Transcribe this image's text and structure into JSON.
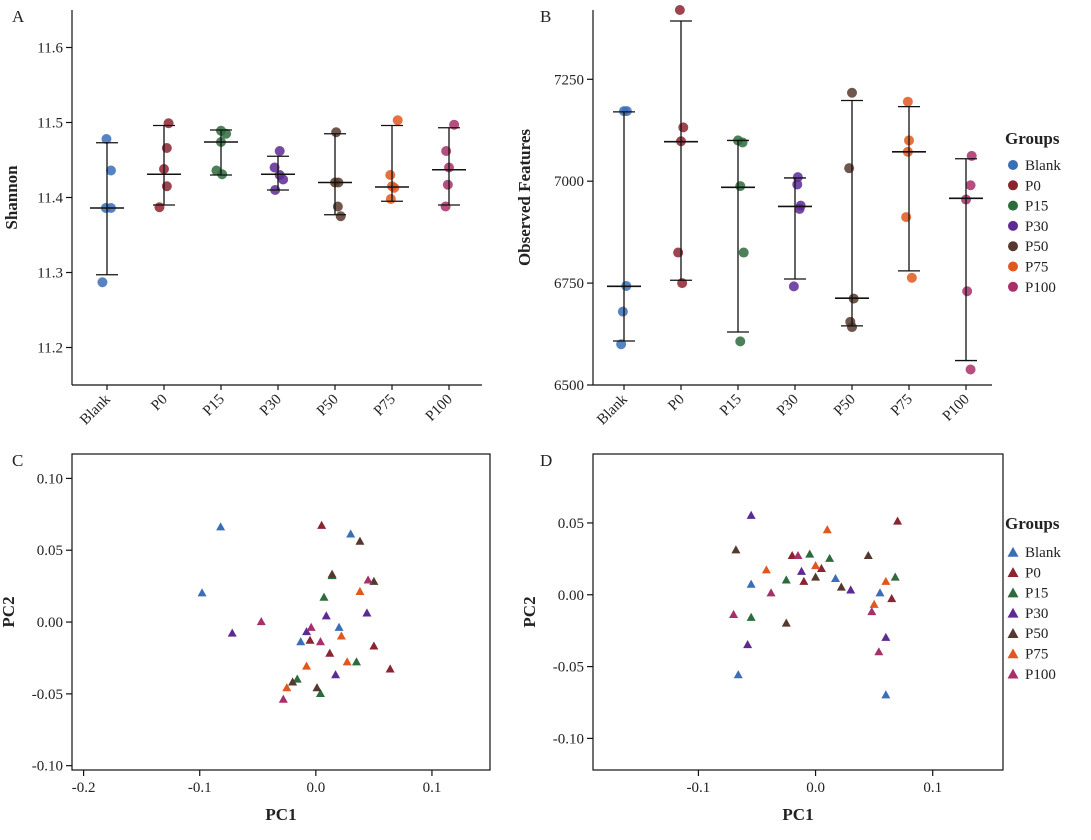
{
  "groups": [
    {
      "name": "Blank",
      "color": "#3a6fb5"
    },
    {
      "name": "P0",
      "color": "#8b2430"
    },
    {
      "name": "P15",
      "color": "#2d6b3c"
    },
    {
      "name": "P30",
      "color": "#5d2a94"
    },
    {
      "name": "P50",
      "color": "#56392e"
    },
    {
      "name": "P75",
      "color": "#e0581f"
    },
    {
      "name": "P100",
      "color": "#a8306a"
    }
  ],
  "legend_title_top": "Groups",
  "legend_title_bottom": "Groups",
  "chart_data": [
    {
      "panel": "A",
      "type": "scatter",
      "ylabel": "Shannon",
      "xlabel": "",
      "ylim": [
        11.15,
        11.65
      ],
      "yticks": [
        11.2,
        11.3,
        11.4,
        11.5,
        11.6
      ],
      "categories": [
        "Blank",
        "P0",
        "P15",
        "P30",
        "P50",
        "P75",
        "P100"
      ],
      "points": [
        [
          {
            "o": -0.08,
            "y": 11.287
          },
          {
            "o": -0.02,
            "y": 11.386
          },
          {
            "o": 0.07,
            "y": 11.386
          },
          {
            "o": -0.01,
            "y": 11.478
          },
          {
            "o": 0.07,
            "y": 11.436
          }
        ],
        [
          {
            "o": -0.08,
            "y": 11.387
          },
          {
            "o": 0.05,
            "y": 11.415
          },
          {
            "o": 0.0,
            "y": 11.438
          },
          {
            "o": 0.05,
            "y": 11.466
          },
          {
            "o": 0.08,
            "y": 11.499
          }
        ],
        [
          {
            "o": -0.08,
            "y": 11.436
          },
          {
            "o": 0.0,
            "y": 11.474
          },
          {
            "o": 0.0,
            "y": 11.489
          },
          {
            "o": 0.09,
            "y": 11.485
          },
          {
            "o": 0.02,
            "y": 11.431
          }
        ],
        [
          {
            "o": -0.06,
            "y": 11.44
          },
          {
            "o": 0.03,
            "y": 11.462
          },
          {
            "o": 0.03,
            "y": 11.43
          },
          {
            "o": -0.05,
            "y": 11.41
          },
          {
            "o": 0.09,
            "y": 11.424
          }
        ],
        [
          {
            "o": 0.02,
            "y": 11.487
          },
          {
            "o": 0.0,
            "y": 11.42
          },
          {
            "o": 0.06,
            "y": 11.42
          },
          {
            "o": 0.05,
            "y": 11.388
          },
          {
            "o": 0.1,
            "y": 11.375
          }
        ],
        [
          {
            "o": -0.03,
            "y": 11.43
          },
          {
            "o": 0.1,
            "y": 11.503
          },
          {
            "o": 0.0,
            "y": 11.415
          },
          {
            "o": -0.02,
            "y": 11.398
          },
          {
            "o": 0.04,
            "y": 11.413
          }
        ],
        [
          {
            "o": -0.05,
            "y": 11.462
          },
          {
            "o": 0.09,
            "y": 11.497
          },
          {
            "o": -0.06,
            "y": 11.388
          },
          {
            "o": 0.0,
            "y": 11.44
          },
          {
            "o": -0.02,
            "y": 11.417
          }
        ]
      ],
      "mean": [
        11.386,
        11.431,
        11.474,
        11.431,
        11.42,
        11.414,
        11.437
      ],
      "err_low": [
        11.297,
        11.39,
        11.43,
        11.41,
        11.377,
        11.395,
        11.39
      ],
      "err_high": [
        11.473,
        11.496,
        11.49,
        11.455,
        11.485,
        11.496,
        11.493
      ]
    },
    {
      "panel": "B",
      "type": "scatter",
      "ylabel": "Observed Features",
      "xlabel": "",
      "ylim": [
        6500,
        7420
      ],
      "yticks": [
        6500,
        6750,
        7000,
        7250
      ],
      "categories": [
        "Blank",
        "P0",
        "P15",
        "P30",
        "P50",
        "P75",
        "P100"
      ],
      "points": [
        [
          {
            "o": -0.05,
            "y": 6600
          },
          {
            "o": -0.02,
            "y": 6680
          },
          {
            "o": 0.04,
            "y": 6743
          },
          {
            "o": 0.0,
            "y": 7172
          },
          {
            "o": 0.05,
            "y": 7172
          }
        ],
        [
          {
            "o": -0.05,
            "y": 6825
          },
          {
            "o": 0.02,
            "y": 6750
          },
          {
            "o": 0.0,
            "y": 7098
          },
          {
            "o": 0.04,
            "y": 7132
          },
          {
            "o": -0.02,
            "y": 7420
          }
        ],
        [
          {
            "o": 0.0,
            "y": 7100
          },
          {
            "o": 0.08,
            "y": 7095
          },
          {
            "o": 0.04,
            "y": 6988
          },
          {
            "o": 0.1,
            "y": 6825
          },
          {
            "o": 0.04,
            "y": 6607
          }
        ],
        [
          {
            "o": 0.05,
            "y": 7010
          },
          {
            "o": 0.04,
            "y": 6992
          },
          {
            "o": 0.08,
            "y": 6932
          },
          {
            "o": 0.1,
            "y": 6940
          },
          {
            "o": -0.02,
            "y": 6742
          }
        ],
        [
          {
            "o": -0.05,
            "y": 7032
          },
          {
            "o": 0.0,
            "y": 7217
          },
          {
            "o": 0.03,
            "y": 6712
          },
          {
            "o": -0.03,
            "y": 6655
          },
          {
            "o": 0.0,
            "y": 6642
          }
        ],
        [
          {
            "o": -0.05,
            "y": 6912
          },
          {
            "o": -0.02,
            "y": 7195
          },
          {
            "o": 0.0,
            "y": 7100
          },
          {
            "o": -0.02,
            "y": 7072
          },
          {
            "o": 0.05,
            "y": 6763
          }
        ],
        [
          {
            "o": 0.1,
            "y": 7062
          },
          {
            "o": 0.08,
            "y": 6990
          },
          {
            "o": 0.0,
            "y": 6955
          },
          {
            "o": 0.02,
            "y": 6730
          },
          {
            "o": 0.08,
            "y": 6538
          }
        ]
      ],
      "mean": [
        6742,
        7097,
        6985,
        6938,
        6713,
        7072,
        6958
      ],
      "err_low": [
        6608,
        6757,
        6630,
        6760,
        6645,
        6780,
        6560
      ],
      "err_high": [
        7170,
        7393,
        7100,
        7008,
        7198,
        7183,
        7055
      ]
    },
    {
      "panel": "C",
      "type": "scatter",
      "xlabel": "PC1",
      "ylabel": "PC2",
      "xlim": [
        -0.21,
        0.15
      ],
      "ylim": [
        -0.103,
        0.117
      ],
      "xticks": [
        -0.2,
        -0.1,
        0.0,
        0.1
      ],
      "yticks": [
        -0.1,
        -0.05,
        0.0,
        0.05,
        0.1
      ],
      "xtick_labels": [
        "-0.2",
        "-0.1",
        "0.0",
        "0.1"
      ],
      "ytick_labels": [
        "-0.10",
        "-0.05",
        "0.00",
        "0.05",
        "0.10"
      ],
      "points": [
        {
          "g": 0,
          "x": -0.082,
          "y": 0.066
        },
        {
          "g": 0,
          "x": -0.098,
          "y": 0.02
        },
        {
          "g": 0,
          "x": 0.03,
          "y": 0.061
        },
        {
          "g": 0,
          "x": -0.013,
          "y": -0.014
        },
        {
          "g": 0,
          "x": 0.02,
          "y": -0.004
        },
        {
          "g": 1,
          "x": 0.005,
          "y": 0.067
        },
        {
          "g": 1,
          "x": 0.064,
          "y": -0.033
        },
        {
          "g": 1,
          "x": 0.05,
          "y": -0.017
        },
        {
          "g": 1,
          "x": -0.005,
          "y": -0.013
        },
        {
          "g": 1,
          "x": 0.012,
          "y": -0.022
        },
        {
          "g": 2,
          "x": 0.014,
          "y": 0.032
        },
        {
          "g": 2,
          "x": 0.007,
          "y": 0.017
        },
        {
          "g": 2,
          "x": 0.035,
          "y": -0.028
        },
        {
          "g": 2,
          "x": -0.016,
          "y": -0.04
        },
        {
          "g": 2,
          "x": 0.004,
          "y": -0.05
        },
        {
          "g": 3,
          "x": -0.072,
          "y": -0.008
        },
        {
          "g": 3,
          "x": 0.009,
          "y": 0.004
        },
        {
          "g": 3,
          "x": -0.008,
          "y": -0.007
        },
        {
          "g": 3,
          "x": 0.044,
          "y": 0.006
        },
        {
          "g": 3,
          "x": 0.017,
          "y": -0.037
        },
        {
          "g": 4,
          "x": 0.038,
          "y": 0.056
        },
        {
          "g": 4,
          "x": 0.05,
          "y": 0.028
        },
        {
          "g": 4,
          "x": 0.014,
          "y": 0.033
        },
        {
          "g": 4,
          "x": -0.02,
          "y": -0.042
        },
        {
          "g": 4,
          "x": 0.001,
          "y": -0.046
        },
        {
          "g": 5,
          "x": -0.025,
          "y": -0.046
        },
        {
          "g": 5,
          "x": -0.008,
          "y": -0.031
        },
        {
          "g": 5,
          "x": 0.022,
          "y": -0.01
        },
        {
          "g": 5,
          "x": 0.027,
          "y": -0.028
        },
        {
          "g": 5,
          "x": 0.038,
          "y": 0.021
        },
        {
          "g": 6,
          "x": -0.047,
          "y": 0.0
        },
        {
          "g": 6,
          "x": -0.028,
          "y": -0.054
        },
        {
          "g": 6,
          "x": 0.045,
          "y": 0.029
        },
        {
          "g": 6,
          "x": -0.004,
          "y": -0.004
        },
        {
          "g": 6,
          "x": 0.004,
          "y": -0.014
        }
      ]
    },
    {
      "panel": "D",
      "type": "scatter",
      "xlabel": "PC1",
      "ylabel": "PC2",
      "xlim": [
        -0.19,
        0.16
      ],
      "ylim": [
        -0.122,
        0.098
      ],
      "xticks": [
        -0.1,
        0.0,
        0.1
      ],
      "yticks": [
        -0.1,
        -0.05,
        0.0,
        0.05
      ],
      "xtick_labels": [
        "-0.1",
        "0.0",
        "0.1"
      ],
      "ytick_labels": [
        "-0.10",
        "-0.05",
        "0.00",
        "0.05"
      ],
      "points": [
        {
          "g": 0,
          "x": -0.055,
          "y": 0.007
        },
        {
          "g": 0,
          "x": -0.066,
          "y": -0.056
        },
        {
          "g": 0,
          "x": 0.055,
          "y": 0.001
        },
        {
          "g": 0,
          "x": 0.06,
          "y": -0.07
        },
        {
          "g": 0,
          "x": 0.017,
          "y": 0.011
        },
        {
          "g": 1,
          "x": 0.07,
          "y": 0.051
        },
        {
          "g": 1,
          "x": 0.065,
          "y": -0.003
        },
        {
          "g": 1,
          "x": -0.01,
          "y": 0.009
        },
        {
          "g": 1,
          "x": 0.005,
          "y": 0.018
        },
        {
          "g": 1,
          "x": -0.02,
          "y": 0.027
        },
        {
          "g": 2,
          "x": -0.055,
          "y": -0.016
        },
        {
          "g": 2,
          "x": -0.025,
          "y": 0.01
        },
        {
          "g": 2,
          "x": -0.005,
          "y": 0.028
        },
        {
          "g": 2,
          "x": 0.012,
          "y": 0.025
        },
        {
          "g": 2,
          "x": 0.068,
          "y": 0.012
        },
        {
          "g": 3,
          "x": -0.055,
          "y": 0.055
        },
        {
          "g": 3,
          "x": -0.058,
          "y": -0.035
        },
        {
          "g": 3,
          "x": -0.012,
          "y": 0.016
        },
        {
          "g": 3,
          "x": 0.06,
          "y": -0.03
        },
        {
          "g": 3,
          "x": 0.03,
          "y": 0.003
        },
        {
          "g": 4,
          "x": -0.068,
          "y": 0.031
        },
        {
          "g": 4,
          "x": -0.025,
          "y": -0.02
        },
        {
          "g": 4,
          "x": 0.045,
          "y": 0.027
        },
        {
          "g": 4,
          "x": 0.0,
          "y": 0.012
        },
        {
          "g": 4,
          "x": 0.022,
          "y": 0.005
        },
        {
          "g": 5,
          "x": -0.042,
          "y": 0.017
        },
        {
          "g": 5,
          "x": 0.01,
          "y": 0.045
        },
        {
          "g": 5,
          "x": 0.0,
          "y": 0.02
        },
        {
          "g": 5,
          "x": 0.06,
          "y": 0.009
        },
        {
          "g": 5,
          "x": 0.05,
          "y": -0.007
        },
        {
          "g": 6,
          "x": -0.07,
          "y": -0.014
        },
        {
          "g": 6,
          "x": -0.038,
          "y": 0.001
        },
        {
          "g": 6,
          "x": -0.015,
          "y": 0.027
        },
        {
          "g": 6,
          "x": 0.054,
          "y": -0.04
        },
        {
          "g": 6,
          "x": 0.048,
          "y": -0.012
        }
      ]
    }
  ]
}
